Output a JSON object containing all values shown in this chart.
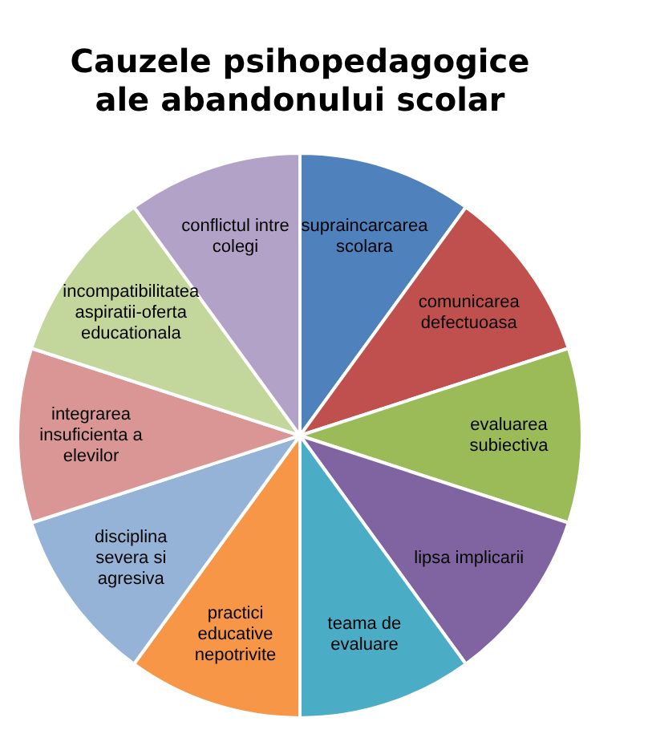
{
  "chart_data": {
    "type": "pie",
    "title": "Cauzele psihopedagogice\nale abandonului scolar",
    "categories": [
      "supraincarcarea scolara",
      "comunicarea defectuoasa",
      "evaluarea subiectiva",
      "lipsa implicarii",
      "teama de evaluare",
      "practici educative nepotrivite",
      "disciplina severa si agresiva",
      "integrarea insuficienta a elevilor",
      "incompatibilitatea aspiratii-oferta educationala",
      "conflictul intre colegi"
    ],
    "values": [
      10,
      10,
      10,
      10,
      10,
      10,
      10,
      10,
      10,
      10
    ],
    "colors": [
      "#4f81bd",
      "#c0504d",
      "#9bbb59",
      "#8064a2",
      "#4bacc6",
      "#f79646",
      "#95b3d7",
      "#d99694",
      "#c3d69b",
      "#b3a2c7"
    ]
  }
}
